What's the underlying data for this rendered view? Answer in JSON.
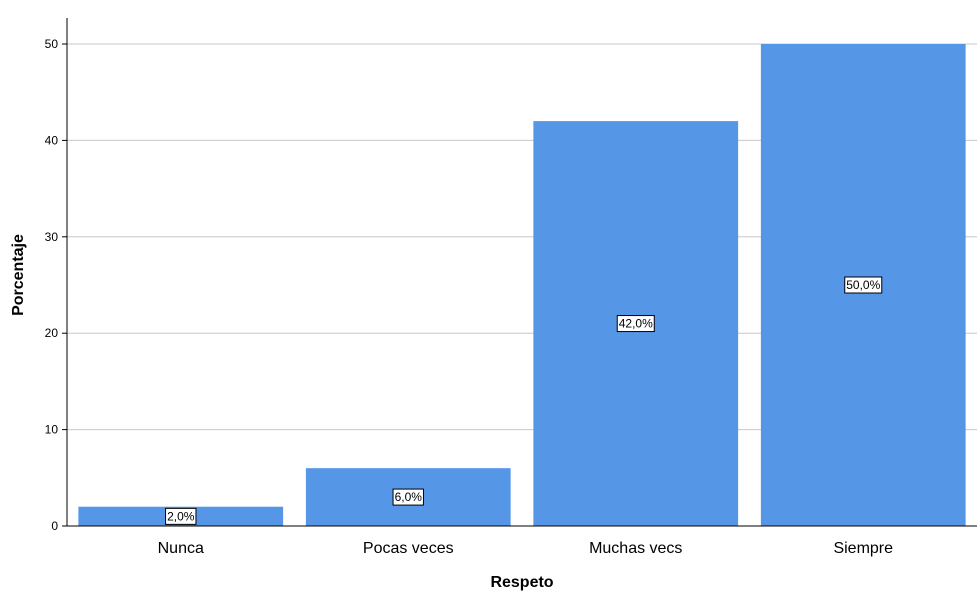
{
  "chart_data": {
    "type": "bar",
    "categories": [
      "Nunca",
      "Pocas veces",
      "Muchas vecs",
      "Siempre"
    ],
    "values": [
      2.0,
      6.0,
      42.0,
      50.0
    ],
    "data_labels": [
      "2,0%",
      "6,0%",
      "42,0%",
      "50,0%"
    ],
    "xlabel": "Respeto",
    "ylabel": "Porcentaje",
    "ylim": [
      0,
      50
    ],
    "yticks": [
      0,
      10,
      20,
      30,
      40,
      50
    ],
    "grid": true,
    "bar_color": "#5596e6",
    "grid_color": "#c8c8c8",
    "axis_color": "#000000"
  }
}
